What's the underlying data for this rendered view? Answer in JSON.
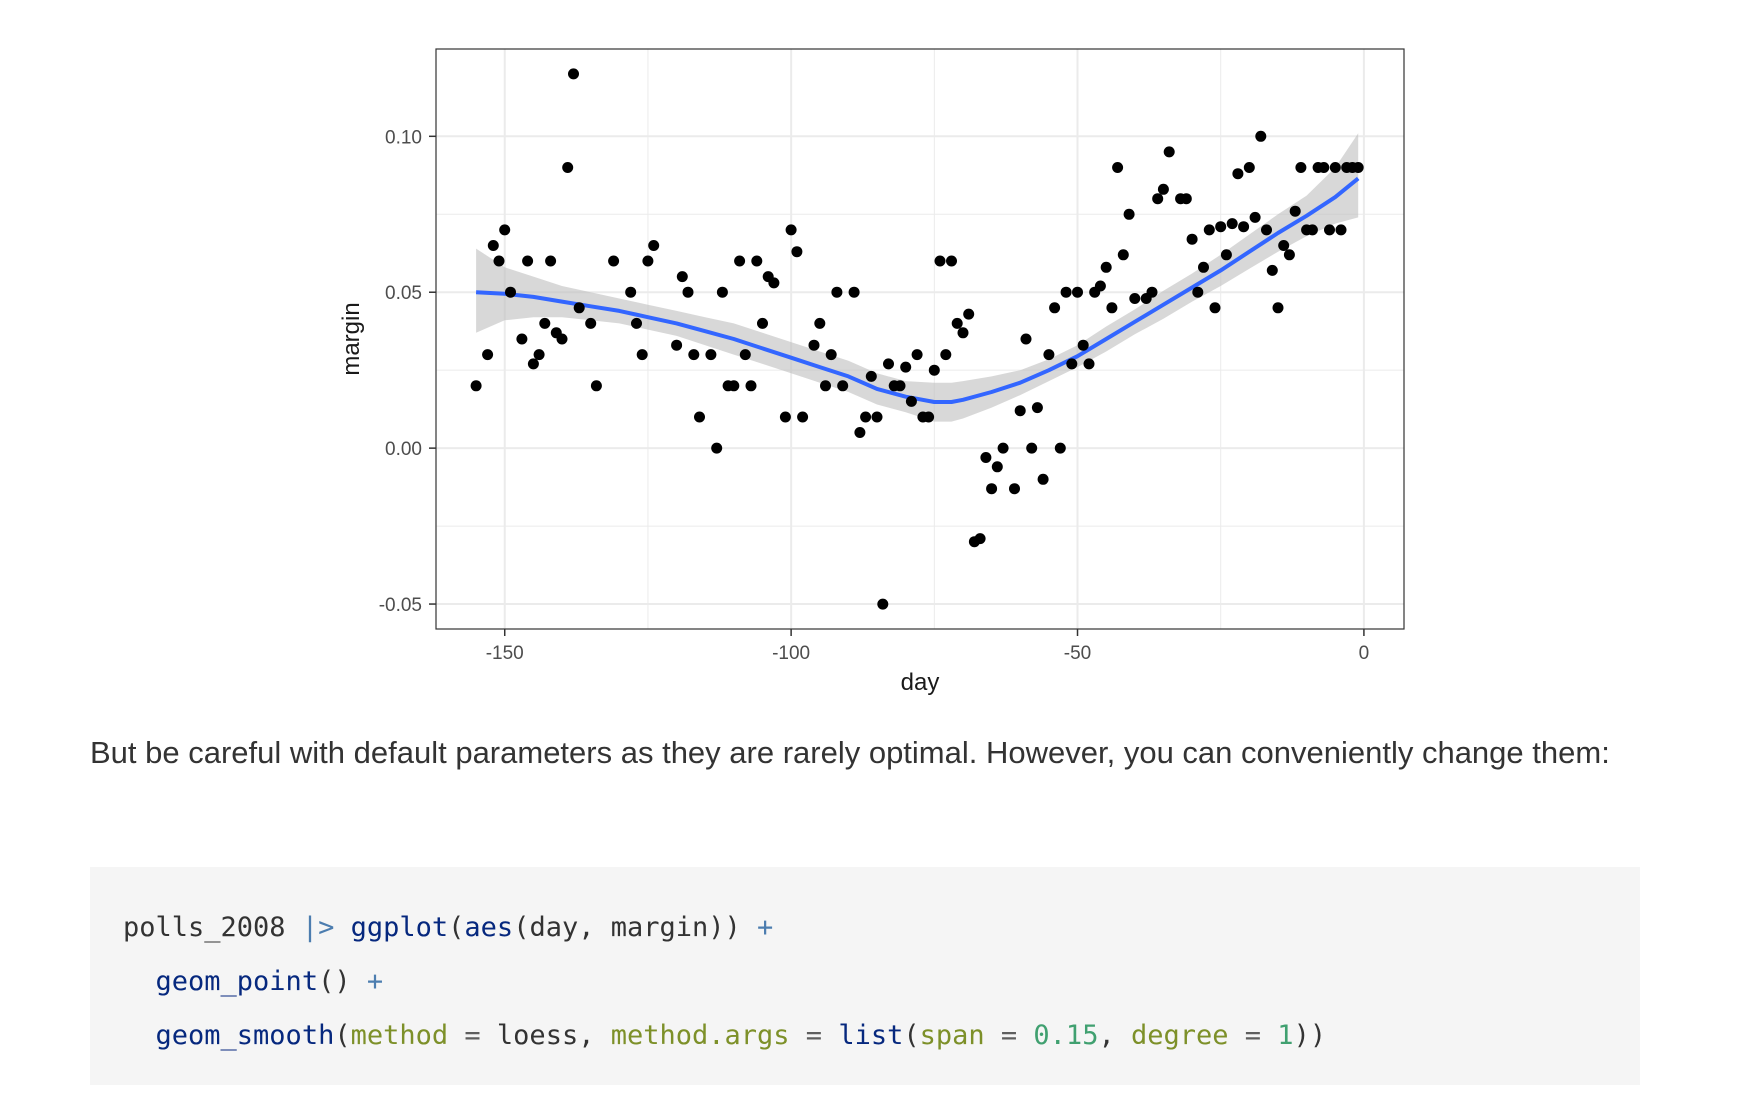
{
  "chart_data": {
    "type": "scatter",
    "xlabel": "day",
    "ylabel": "margin",
    "xlim": [
      -162,
      7
    ],
    "ylim": [
      -0.058,
      0.128
    ],
    "x_ticks": [
      -150,
      -100,
      -50,
      0
    ],
    "x_tick_labels": [
      "-150",
      "-100",
      "-50",
      "0"
    ],
    "y_ticks": [
      -0.05,
      0.0,
      0.05,
      0.1
    ],
    "y_tick_labels": [
      "-0.05",
      "0.00",
      "0.05",
      "0.10"
    ],
    "grid": true,
    "colors": {
      "points": "#000000",
      "smooth_line": "#3366ff",
      "ribbon": "#bebebe",
      "panel_border": "#333333",
      "grid": "#ebebeb"
    },
    "series": [
      {
        "kind": "points",
        "x": [
          -155,
          -153,
          -152,
          -151,
          -150,
          -149,
          -147,
          -146,
          -145,
          -144,
          -143,
          -142,
          -141,
          -140,
          -139,
          -138,
          -137,
          -135,
          -134,
          -131,
          -128,
          -127,
          -126,
          -125,
          -124,
          -120,
          -119,
          -118,
          -117,
          -116,
          -114,
          -113,
          -112,
          -111,
          -110,
          -109,
          -108,
          -107,
          -106,
          -105,
          -104,
          -103,
          -101,
          -100,
          -99,
          -98,
          -96,
          -95,
          -94,
          -93,
          -92,
          -91,
          -89,
          -88,
          -87,
          -86,
          -85,
          -84,
          -83,
          -82,
          -81,
          -80,
          -79,
          -78,
          -77,
          -76,
          -75,
          -74,
          -73,
          -72,
          -71,
          -70,
          -69,
          -68,
          -67,
          -66,
          -65,
          -64,
          -63,
          -61,
          -60,
          -59,
          -58,
          -57,
          -56,
          -55,
          -54,
          -53,
          -52,
          -51,
          -50,
          -49,
          -48,
          -47,
          -46,
          -45,
          -44,
          -43,
          -42,
          -41,
          -40,
          -38,
          -37,
          -36,
          -35,
          -34,
          -32,
          -31,
          -30,
          -29,
          -28,
          -27,
          -26,
          -25,
          -24,
          -23,
          -22,
          -21,
          -20,
          -19,
          -18,
          -17,
          -16,
          -15,
          -14,
          -13,
          -12,
          -11,
          -10,
          -9,
          -8,
          -7,
          -6,
          -5,
          -4,
          -3,
          -2,
          -1
        ],
        "y": [
          0.02,
          0.03,
          0.065,
          0.06,
          0.07,
          0.05,
          0.035,
          0.06,
          0.027,
          0.03,
          0.04,
          0.06,
          0.037,
          0.035,
          0.09,
          0.12,
          0.045,
          0.04,
          0.02,
          0.06,
          0.05,
          0.04,
          0.03,
          0.06,
          0.065,
          0.033,
          0.055,
          0.05,
          0.03,
          0.01,
          0.03,
          0.0,
          0.05,
          0.02,
          0.02,
          0.06,
          0.03,
          0.02,
          0.06,
          0.04,
          0.055,
          0.053,
          0.01,
          0.07,
          0.063,
          0.01,
          0.033,
          0.04,
          0.02,
          0.03,
          0.05,
          0.02,
          0.05,
          0.005,
          0.01,
          0.023,
          0.01,
          -0.05,
          0.027,
          0.02,
          0.02,
          0.026,
          0.015,
          0.03,
          0.01,
          0.01,
          0.025,
          0.06,
          0.03,
          0.06,
          0.04,
          0.037,
          0.043,
          -0.03,
          -0.029,
          -0.003,
          -0.013,
          -0.006,
          0.0,
          -0.013,
          0.012,
          0.035,
          0.0,
          0.013,
          -0.01,
          0.03,
          0.045,
          0.0,
          0.05,
          0.027,
          0.05,
          0.033,
          0.027,
          0.05,
          0.052,
          0.058,
          0.045,
          0.09,
          0.062,
          0.075,
          0.048,
          0.048,
          0.05,
          0.08,
          0.083,
          0.095,
          0.08,
          0.08,
          0.067,
          0.05,
          0.058,
          0.07,
          0.045,
          0.071,
          0.062,
          0.072,
          0.088,
          0.071,
          0.09,
          0.074,
          0.1,
          0.07,
          0.057,
          0.045,
          0.065,
          0.062,
          0.076,
          0.09,
          0.07,
          0.07,
          0.09,
          0.09,
          0.07,
          0.09,
          0.07,
          0.09,
          0.09,
          0.09
        ]
      },
      {
        "kind": "smooth",
        "name": "",
        "x": [
          -155,
          -150,
          -145,
          -140,
          -135,
          -130,
          -125,
          -120,
          -115,
          -110,
          -105,
          -100,
          -95,
          -90,
          -85,
          -80,
          -75,
          -72,
          -70,
          -65,
          -60,
          -55,
          -50,
          -45,
          -40,
          -35,
          -30,
          -25,
          -20,
          -15,
          -10,
          -5,
          -1
        ],
        "y": [
          0.05,
          0.0495,
          0.0485,
          0.047,
          0.0455,
          0.044,
          0.042,
          0.04,
          0.0375,
          0.035,
          0.032,
          0.029,
          0.026,
          0.023,
          0.019,
          0.0165,
          0.0148,
          0.0148,
          0.0155,
          0.018,
          0.021,
          0.025,
          0.0295,
          0.035,
          0.0405,
          0.046,
          0.0515,
          0.057,
          0.063,
          0.069,
          0.0745,
          0.0805,
          0.0865
        ],
        "lower": [
          0.037,
          0.041,
          0.042,
          0.042,
          0.041,
          0.04,
          0.038,
          0.036,
          0.033,
          0.03,
          0.027,
          0.024,
          0.021,
          0.018,
          0.014,
          0.0115,
          0.0085,
          0.0085,
          0.0095,
          0.013,
          0.017,
          0.0215,
          0.026,
          0.031,
          0.0365,
          0.0415,
          0.047,
          0.052,
          0.0575,
          0.063,
          0.068,
          0.072,
          0.074
        ],
        "upper": [
          0.064,
          0.058,
          0.055,
          0.052,
          0.05,
          0.048,
          0.046,
          0.044,
          0.042,
          0.04,
          0.037,
          0.034,
          0.031,
          0.028,
          0.024,
          0.0215,
          0.021,
          0.021,
          0.0215,
          0.023,
          0.025,
          0.0285,
          0.033,
          0.039,
          0.0445,
          0.0505,
          0.056,
          0.062,
          0.0685,
          0.075,
          0.081,
          0.09,
          0.101
        ]
      }
    ]
  },
  "prose": {
    "text": "But be careful with default parameters as they are rarely optimal. However, you can conveniently change them:"
  },
  "code": {
    "line1": {
      "t1": "polls_2008 ",
      "t2": "|>",
      "t3": " ",
      "t4": "ggplot",
      "t5": "(",
      "t6": "aes",
      "t7": "(day, margin)) ",
      "t8": "+"
    },
    "line2": {
      "indent": "  ",
      "t1": "geom_point",
      "t2": "() ",
      "t3": "+"
    },
    "line3": {
      "indent": "  ",
      "t1": "geom_smooth",
      "t2": "(",
      "t3": "method",
      "t4": " = ",
      "t5": "loess, ",
      "t6": "method.args",
      "t7": " = ",
      "t8": "list",
      "t9": "(",
      "t10": "span",
      "t11": " = ",
      "t12": "0.15",
      "t13": ", ",
      "t14": "degree",
      "t15": " = ",
      "t16": "1",
      "t17": "))"
    }
  }
}
